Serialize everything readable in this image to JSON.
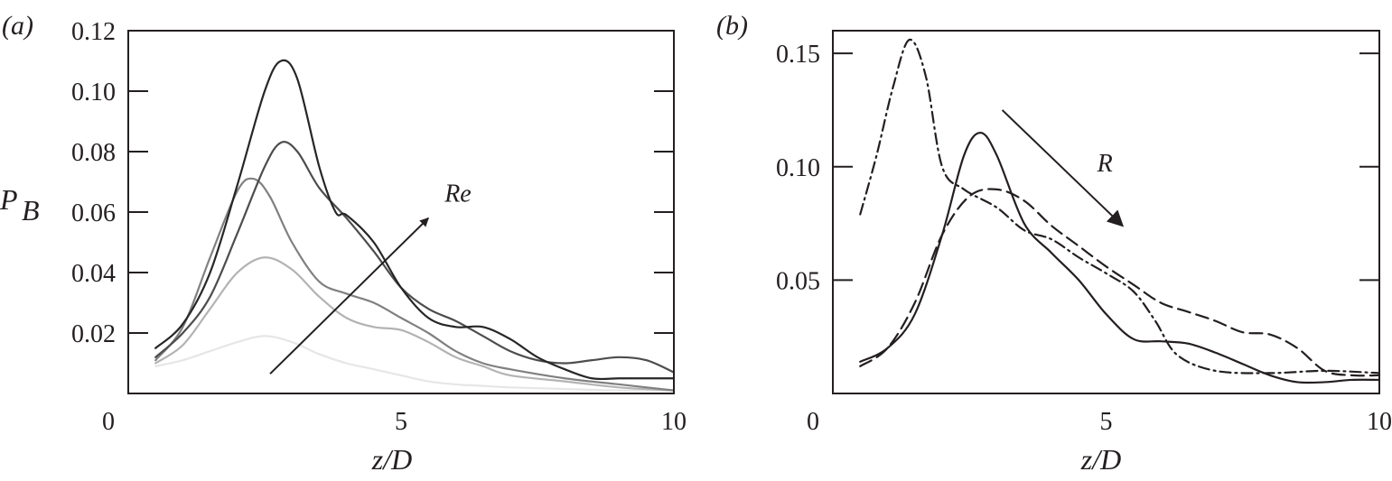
{
  "chart_data": [
    {
      "type": "line",
      "panel_label": "(a)",
      "xlabel": "z/D",
      "ylabel": "P",
      "ylabel_subscript": "B",
      "xlim": [
        0,
        10
      ],
      "ylim": [
        0,
        0.12
      ],
      "x_ticks": [
        0,
        5,
        10
      ],
      "x_tick_labels": [
        "0",
        "5",
        "10"
      ],
      "y_ticks": [
        0.02,
        0.04,
        0.06,
        0.08,
        0.1,
        0.12
      ],
      "y_tick_labels": [
        "0.02",
        "0.04",
        "0.06",
        "0.08",
        "0.10",
        "0.12"
      ],
      "grid": false,
      "annotations": [
        {
          "text": "Re",
          "arrow_from": [
            2.6,
            0.0065
          ],
          "arrow_to": [
            5.5,
            0.058
          ]
        }
      ],
      "series": [
        {
          "color": "#e6e6e6",
          "style": "solid",
          "x": [
            0.5,
            1,
            1.5,
            2,
            2.5,
            3,
            3.5,
            4,
            4.5,
            5,
            5.5,
            6,
            6.5,
            7,
            8,
            9,
            10
          ],
          "y": [
            0.009,
            0.011,
            0.014,
            0.017,
            0.019,
            0.017,
            0.013,
            0.01,
            0.008,
            0.006,
            0.004,
            0.003,
            0.0025,
            0.002,
            0.0015,
            0.001,
            0.001
          ]
        },
        {
          "color": "#b3b3b3",
          "style": "solid",
          "x": [
            0.5,
            1,
            1.5,
            2,
            2.5,
            3,
            3.5,
            4,
            4.5,
            5,
            5.5,
            6,
            6.5,
            7,
            8,
            9,
            10
          ],
          "y": [
            0.01,
            0.016,
            0.028,
            0.04,
            0.045,
            0.041,
            0.032,
            0.025,
            0.022,
            0.021,
            0.017,
            0.012,
            0.009,
            0.006,
            0.004,
            0.002,
            0.001
          ]
        },
        {
          "color": "#808080",
          "style": "solid",
          "x": [
            0.5,
            1,
            1.5,
            2,
            2.3,
            2.6,
            3,
            3.5,
            4,
            4.5,
            5,
            5.5,
            6,
            6.5,
            7,
            8,
            9,
            10
          ],
          "y": [
            0.011,
            0.022,
            0.045,
            0.067,
            0.071,
            0.065,
            0.05,
            0.037,
            0.033,
            0.03,
            0.025,
            0.02,
            0.014,
            0.01,
            0.008,
            0.005,
            0.003,
            0.001
          ]
        },
        {
          "color": "#4d4d4d",
          "style": "solid",
          "x": [
            0.5,
            1,
            1.5,
            2,
            2.5,
            2.8,
            3.1,
            3.5,
            4,
            4.5,
            5,
            5.5,
            6,
            6.5,
            7,
            7.5,
            8,
            8.5,
            9,
            9.5,
            10
          ],
          "y": [
            0.012,
            0.02,
            0.032,
            0.053,
            0.075,
            0.083,
            0.08,
            0.068,
            0.058,
            0.047,
            0.035,
            0.028,
            0.024,
            0.019,
            0.014,
            0.011,
            0.01,
            0.011,
            0.012,
            0.011,
            0.007
          ]
        },
        {
          "color": "#262626",
          "style": "solid",
          "x": [
            0.5,
            1,
            1.5,
            2,
            2.5,
            2.8,
            3.1,
            3.5,
            3.8,
            4,
            4.5,
            5,
            5.5,
            6,
            6.5,
            7,
            7.5,
            8,
            8.5,
            9,
            9.5,
            10
          ],
          "y": [
            0.015,
            0.023,
            0.04,
            0.069,
            0.1,
            0.11,
            0.104,
            0.075,
            0.06,
            0.059,
            0.05,
            0.035,
            0.025,
            0.022,
            0.022,
            0.018,
            0.012,
            0.008,
            0.005,
            0.005,
            0.005,
            0.005
          ]
        }
      ]
    },
    {
      "type": "line",
      "panel_label": "(b)",
      "xlabel": "z/D",
      "ylabel": "",
      "xlim": [
        0,
        10
      ],
      "ylim": [
        0,
        0.16
      ],
      "x_ticks": [
        0,
        5,
        10
      ],
      "x_tick_labels": [
        "0",
        "5",
        "10"
      ],
      "y_ticks": [
        0.05,
        0.1,
        0.15
      ],
      "y_tick_labels": [
        "0.05",
        "0.10",
        "0.15"
      ],
      "grid": false,
      "annotations": [
        {
          "text": "R",
          "arrow_from": [
            3.1,
            0.125
          ],
          "arrow_to": [
            5.3,
            0.074
          ]
        }
      ],
      "series": [
        {
          "color": "#231f20",
          "style": "solid",
          "x": [
            0.5,
            1,
            1.5,
            2,
            2.4,
            2.7,
            3,
            3.5,
            4,
            4.5,
            5,
            5.5,
            6,
            6.5,
            7,
            7.5,
            8,
            8.5,
            9,
            9.5,
            10
          ],
          "y": [
            0.014,
            0.02,
            0.035,
            0.07,
            0.105,
            0.115,
            0.105,
            0.075,
            0.062,
            0.05,
            0.035,
            0.024,
            0.023,
            0.022,
            0.018,
            0.013,
            0.008,
            0.005,
            0.005,
            0.006,
            0.006
          ]
        },
        {
          "color": "#231f20",
          "style": "dashed",
          "x": [
            0.5,
            1,
            1.5,
            2,
            2.5,
            3,
            3.5,
            4,
            4.5,
            5,
            5.5,
            6,
            6.5,
            7,
            7.5,
            8,
            8.5,
            9,
            9.5,
            10
          ],
          "y": [
            0.012,
            0.02,
            0.04,
            0.07,
            0.087,
            0.09,
            0.085,
            0.074,
            0.065,
            0.056,
            0.048,
            0.04,
            0.036,
            0.032,
            0.027,
            0.026,
            0.02,
            0.01,
            0.008,
            0.008
          ]
        },
        {
          "color": "#231f20",
          "style": "dashdot",
          "x": [
            0.5,
            0.8,
            1.1,
            1.4,
            1.7,
            2,
            2.4,
            3,
            3.5,
            4,
            4.5,
            5,
            5.5,
            5.9,
            6.3,
            7,
            8,
            9,
            10
          ],
          "y": [
            0.079,
            0.105,
            0.135,
            0.156,
            0.14,
            0.1,
            0.09,
            0.082,
            0.072,
            0.068,
            0.06,
            0.053,
            0.045,
            0.032,
            0.017,
            0.01,
            0.009,
            0.01,
            0.009
          ]
        }
      ]
    }
  ]
}
